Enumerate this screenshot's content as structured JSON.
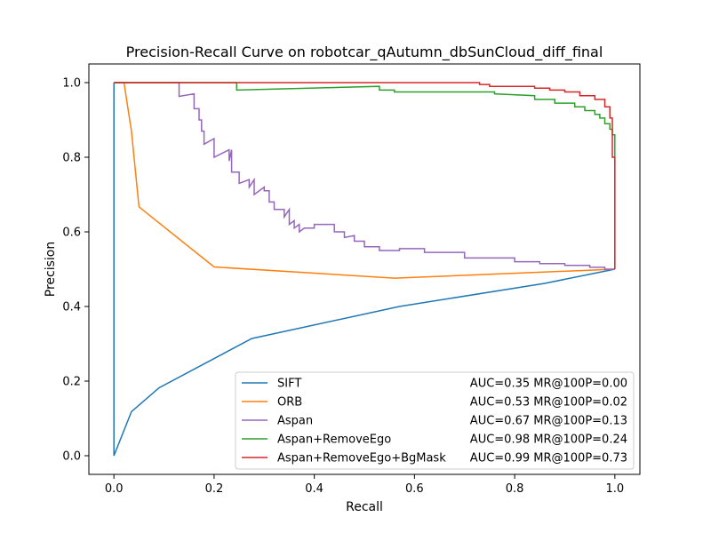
{
  "chart_data": {
    "type": "line",
    "title": "Precision-Recall Curve on robotcar_qAutumn_dbSunCloud_diff_final",
    "xlabel": "Recall",
    "ylabel": "Precision",
    "xlim": [
      -0.05,
      1.05
    ],
    "ylim": [
      -0.05,
      1.05
    ],
    "xticks": [
      0.0,
      0.2,
      0.4,
      0.6,
      0.8,
      1.0
    ],
    "yticks": [
      0.0,
      0.2,
      0.4,
      0.6,
      0.8,
      1.0
    ],
    "xtick_labels": [
      "0.0",
      "0.2",
      "0.4",
      "0.6",
      "0.8",
      "1.0"
    ],
    "ytick_labels": [
      "0.0",
      "0.2",
      "0.4",
      "0.6",
      "0.8",
      "1.0"
    ],
    "grid": false,
    "legend_position": "lower-right",
    "series": [
      {
        "name": "SIFT",
        "stat": "AUC=0.35 MR@100P=0.00",
        "color": "#1f77b4",
        "x": [
          0.0,
          0.0,
          0.0,
          0.035,
          0.09,
          0.275,
          0.57,
          0.86,
          1.0
        ],
        "y": [
          1.0,
          0.5,
          0.0,
          0.118,
          0.182,
          0.314,
          0.4,
          0.462,
          0.5
        ]
      },
      {
        "name": "ORB",
        "stat": "AUC=0.53 MR@100P=0.02",
        "color": "#ff7f0e",
        "x": [
          0.0,
          0.02,
          0.035,
          0.05,
          0.2,
          0.56,
          1.0
        ],
        "y": [
          1.0,
          1.0,
          0.87,
          0.667,
          0.506,
          0.476,
          0.5
        ]
      },
      {
        "name": "Aspan",
        "stat": "AUC=0.67 MR@100P=0.13",
        "color": "#9467bd",
        "x": [
          0.0,
          0.13,
          0.13,
          0.16,
          0.16,
          0.17,
          0.17,
          0.175,
          0.175,
          0.18,
          0.18,
          0.2,
          0.2,
          0.23,
          0.23,
          0.235,
          0.235,
          0.25,
          0.25,
          0.27,
          0.27,
          0.28,
          0.28,
          0.3,
          0.3,
          0.31,
          0.31,
          0.32,
          0.32,
          0.34,
          0.34,
          0.35,
          0.35,
          0.36,
          0.36,
          0.37,
          0.37,
          0.38,
          0.38,
          0.4,
          0.4,
          0.44,
          0.44,
          0.46,
          0.46,
          0.48,
          0.48,
          0.5,
          0.5,
          0.53,
          0.53,
          0.57,
          0.57,
          0.62,
          0.62,
          0.7,
          0.7,
          0.8,
          0.8,
          0.85,
          0.85,
          0.9,
          0.9,
          0.95,
          0.95,
          0.98,
          0.98,
          1.0,
          1.0
        ],
        "y": [
          1.0,
          1.0,
          0.963,
          0.97,
          0.93,
          0.93,
          0.9,
          0.9,
          0.87,
          0.87,
          0.835,
          0.85,
          0.8,
          0.82,
          0.79,
          0.82,
          0.76,
          0.76,
          0.73,
          0.74,
          0.72,
          0.74,
          0.7,
          0.72,
          0.71,
          0.71,
          0.68,
          0.68,
          0.66,
          0.66,
          0.64,
          0.66,
          0.62,
          0.63,
          0.61,
          0.62,
          0.6,
          0.61,
          0.61,
          0.61,
          0.62,
          0.62,
          0.6,
          0.6,
          0.585,
          0.59,
          0.575,
          0.575,
          0.56,
          0.56,
          0.55,
          0.55,
          0.555,
          0.555,
          0.545,
          0.545,
          0.53,
          0.53,
          0.52,
          0.52,
          0.515,
          0.515,
          0.51,
          0.51,
          0.505,
          0.505,
          0.5,
          0.5,
          0.5
        ]
      },
      {
        "name": "Aspan+RemoveEgo",
        "stat": "AUC=0.98 MR@100P=0.24",
        "color": "#2ca02c",
        "x": [
          0.0,
          0.245,
          0.245,
          0.53,
          0.53,
          0.56,
          0.56,
          0.76,
          0.76,
          0.84,
          0.84,
          0.88,
          0.88,
          0.92,
          0.92,
          0.94,
          0.94,
          0.96,
          0.96,
          0.97,
          0.97,
          0.98,
          0.98,
          0.99,
          0.99,
          0.995,
          0.995,
          1.0,
          1.0
        ],
        "y": [
          1.0,
          1.0,
          0.98,
          0.99,
          0.98,
          0.98,
          0.975,
          0.975,
          0.97,
          0.965,
          0.955,
          0.955,
          0.945,
          0.945,
          0.935,
          0.935,
          0.925,
          0.925,
          0.915,
          0.915,
          0.905,
          0.905,
          0.89,
          0.89,
          0.875,
          0.875,
          0.86,
          0.86,
          0.5
        ]
      },
      {
        "name": "Aspan+RemoveEgo+BgMask",
        "stat": "AUC=0.99 MR@100P=0.73",
        "color": "#d62728",
        "x": [
          0.0,
          0.73,
          0.73,
          0.75,
          0.75,
          0.84,
          0.84,
          0.87,
          0.87,
          0.9,
          0.9,
          0.93,
          0.93,
          0.96,
          0.96,
          0.98,
          0.98,
          0.99,
          0.99,
          0.995,
          0.995,
          1.0,
          1.0
        ],
        "y": [
          1.0,
          1.0,
          0.995,
          0.995,
          0.99,
          0.99,
          0.985,
          0.985,
          0.98,
          0.98,
          0.975,
          0.975,
          0.965,
          0.965,
          0.955,
          0.955,
          0.935,
          0.935,
          0.905,
          0.905,
          0.8,
          0.8,
          0.5
        ]
      }
    ]
  }
}
